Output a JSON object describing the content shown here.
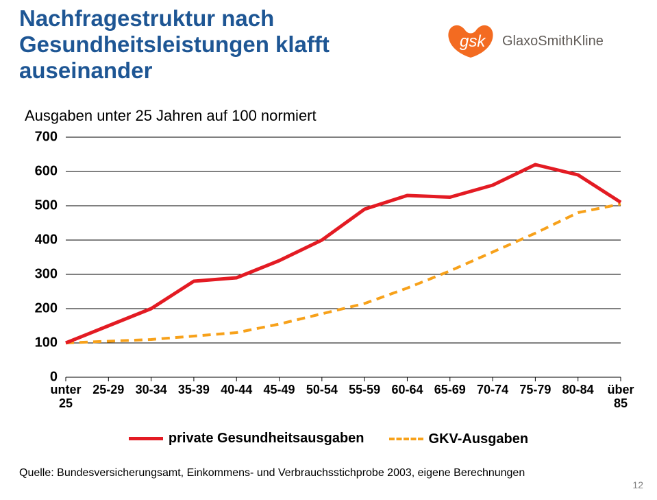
{
  "title": "Nachfragestruktur nach\nGesundheitsleistungen klafft\nauseinander",
  "subtitle": "Ausgaben unter 25 Jahren auf 100 normiert",
  "logo": {
    "text": "GlaxoSmithKline",
    "abbr": "gsk",
    "shape_fill": "#f36b21",
    "text_color": "#615c58"
  },
  "chart": {
    "type": "line",
    "background_color": "#ffffff",
    "grid_color": "#000000",
    "grid_stroke_width": 1,
    "x_categories": [
      "unter\n25",
      "25-29",
      "30-34",
      "35-39",
      "40-44",
      "45-49",
      "50-54",
      "55-59",
      "60-64",
      "65-69",
      "70-74",
      "75-79",
      "80-84",
      "über\n85"
    ],
    "ylim": [
      0,
      700
    ],
    "ytick_step": 100,
    "x_label_fontsize": 18,
    "y_label_fontsize": 20,
    "series": [
      {
        "name": "private Gesundheitsausgaben",
        "color": "#e31b23",
        "line_width": 5,
        "dash": "none",
        "values": [
          100,
          150,
          200,
          280,
          290,
          340,
          400,
          490,
          530,
          525,
          560,
          620,
          590,
          510
        ]
      },
      {
        "name": "GKV-Ausgaben",
        "color": "#f7a11a",
        "line_width": 4,
        "dash": "12,8",
        "values": [
          100,
          105,
          110,
          120,
          130,
          155,
          185,
          215,
          260,
          310,
          365,
          420,
          480,
          505
        ]
      }
    ]
  },
  "legend": {
    "items": [
      {
        "label": "private Gesundheitsausgaben",
        "color": "#e31b23",
        "dash": "none",
        "width": 5
      },
      {
        "label": "GKV-Ausgaben",
        "color": "#f7a11a",
        "dash": "10,6",
        "width": 4
      }
    ]
  },
  "source": "Quelle: Bundesversicherungsamt, Einkommens- und Verbrauchsstichprobe 2003, eigene Berechnungen",
  "page_number": "12"
}
